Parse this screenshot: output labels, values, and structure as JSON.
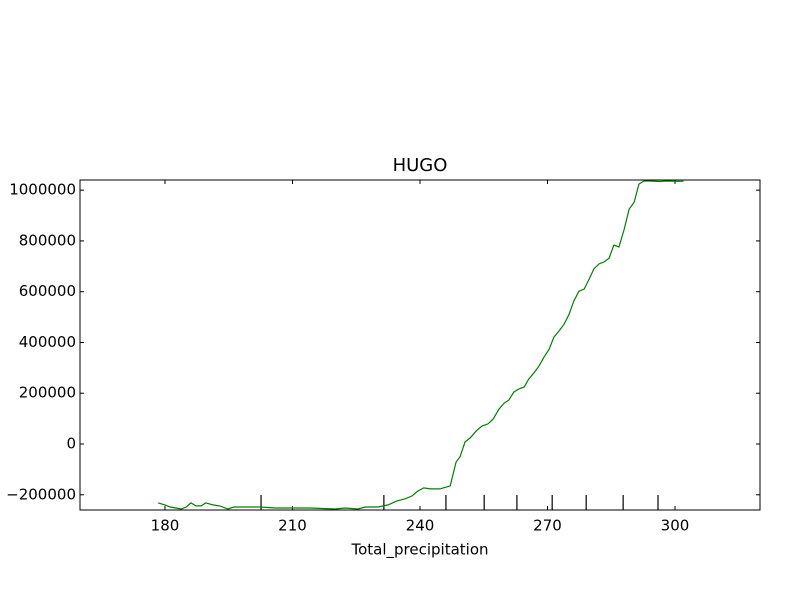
{
  "chart_data": {
    "type": "line",
    "title": "HUGO",
    "x_label": "Total_precipitation",
    "series": [
      {
        "color": "#008000",
        "x": [
          178.4,
          180,
          181.2,
          182.6,
          183.8,
          185,
          186.1,
          187.3,
          188.5,
          189.6,
          191.3,
          192.9,
          194.8,
          196.2,
          198.8,
          202.4,
          205.9,
          210.6,
          214.1,
          220,
          222.4,
          225.4,
          227.1,
          230.1,
          232.5,
          234.6,
          236.5,
          238.1,
          239.5,
          240.9,
          242.4,
          244.7,
          247.1,
          248.5,
          249.4,
          250.6,
          251.8,
          253.2,
          254.6,
          256,
          257.2,
          258.6,
          259.8,
          260.9,
          262.1,
          263.3,
          264.5,
          265.6,
          266.8,
          268,
          269.2,
          270.4,
          271.5,
          272.7,
          273.9,
          275.1,
          276.2,
          277.4,
          278.6,
          279.8,
          280.9,
          282.1,
          283.3,
          284.5,
          285.6,
          286.8,
          288,
          289.2,
          290.4,
          291.5,
          292.7,
          294.1,
          296.5,
          297.9,
          300.3,
          302
        ],
        "values": [
          -232000,
          -240000,
          -248000,
          -252000,
          -256000,
          -248000,
          -232000,
          -244000,
          -244000,
          -232000,
          -240000,
          -244000,
          -256000,
          -248000,
          -248000,
          -248000,
          -252000,
          -252000,
          -252000,
          -256000,
          -252000,
          -256000,
          -248000,
          -248000,
          -240000,
          -224000,
          -216000,
          -205000,
          -185000,
          -173000,
          -177000,
          -177000,
          -165000,
          -71000,
          -51000,
          8000,
          24000,
          51000,
          71000,
          79000,
          98000,
          138000,
          161000,
          173000,
          205000,
          217000,
          224000,
          256000,
          280000,
          307000,
          343000,
          374000,
          421000,
          445000,
          472000,
          512000,
          563000,
          602000,
          610000,
          650000,
          689000,
          709000,
          717000,
          732000,
          783000,
          776000,
          843000,
          925000,
          953000,
          1024000,
          1036000,
          1036000,
          1034000,
          1036000,
          1035000,
          1035000
        ]
      }
    ],
    "deciles": [
      202.6,
      231.5,
      246.1,
      255.1,
      262.8,
      271.1,
      279.1,
      287.8,
      296
    ],
    "xlim": [
      160,
      320
    ],
    "xticks": [
      180,
      210,
      240,
      270,
      300
    ],
    "ylim": [
      -260000,
      1040000
    ],
    "yticks": [
      {
        "value": -200000,
        "label": "−200000"
      },
      0,
      200000,
      400000,
      600000,
      800000,
      1000000
    ]
  }
}
